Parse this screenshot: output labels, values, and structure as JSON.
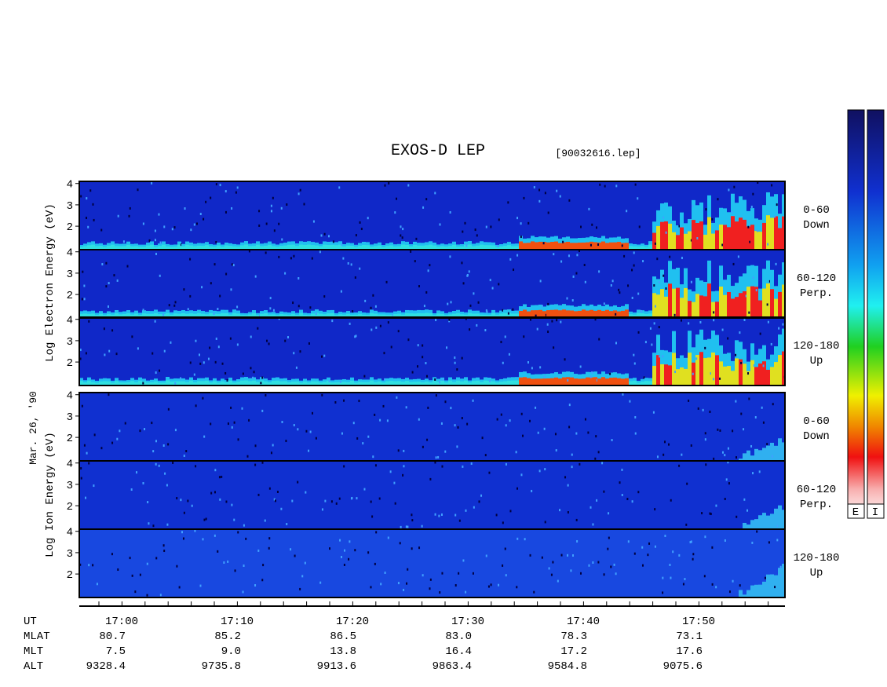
{
  "title": "EXOS-D LEP",
  "file": "[90032616.lep]",
  "date": "Mar. 26, '90",
  "electron_label": "Log Electron Energy (eV)",
  "ion_label": "Log Ion Energy (eV)",
  "energy_axis": {
    "ylim": [
      0.9,
      4.1
    ],
    "yticks": [
      2,
      3,
      4
    ]
  },
  "pitch_angles": [
    {
      "range": "0-60",
      "direction": "Down"
    },
    {
      "range": "60-120",
      "direction": "Perp."
    },
    {
      "range": "120-180",
      "direction": "Up"
    }
  ],
  "orbit": {
    "rows": [
      {
        "label": "UT",
        "values": [
          "17:00",
          "17:10",
          "17:20",
          "17:30",
          "17:40",
          "17:50"
        ]
      },
      {
        "label": "MLAT",
        "values": [
          "80.7",
          "85.2",
          "86.5",
          "83.0",
          "78.3",
          "73.1"
        ]
      },
      {
        "label": "MLT",
        "values": [
          "7.5",
          "9.0",
          "13.8",
          "16.4",
          "17.2",
          "17.6"
        ]
      },
      {
        "label": "ALT",
        "values": [
          "9328.4",
          "9735.8",
          "9913.6",
          "9863.4",
          "9584.8",
          "9075.6"
        ]
      }
    ]
  },
  "colorbar_labels": [
    "E",
    "I"
  ]
}
